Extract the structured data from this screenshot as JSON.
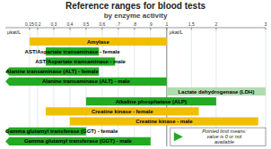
{
  "chart_data": {
    "type": "bar",
    "orientation": "horizontal",
    "title": "Reference ranges for blood tests",
    "subtitle": "by enzyme activity",
    "xlabel": "μkat/L",
    "categories": [
      "Amylase",
      "AST/Aspartate transaminase - female",
      "AST/Aspartate transaminase - male",
      "Alanine transaminase (ALT) - female",
      "Alanine transaminase (ALT) - male",
      "Lactate dehydrogenase (LDH)",
      "Alkaline phosphatase (ALP)",
      "Creatine kinase - female",
      "Creatine kinase - male",
      "Gamma glutamyl transferase (GGT) - female",
      "Gamma glutamyl transferase (GGT) - male"
    ],
    "values": [
      [
        0.15,
        1.0
      ],
      [
        0.25,
        0.58
      ],
      [
        0.25,
        0.68
      ],
      [
        0.0,
        0.58
      ],
      [
        0.0,
        1.0
      ],
      [
        1.0,
        3.0
      ],
      [
        0.5,
        2.0
      ],
      [
        0.25,
        1.65
      ],
      [
        0.4,
        2.85
      ],
      [
        0.0,
        0.5
      ],
      [
        0.0,
        0.9
      ]
    ],
    "colors": [
      "#f0c000",
      "#22aa22",
      "#22aa22",
      "#22aa22",
      "#22aa22",
      "#b0ddb0",
      "#22aa22",
      "#f0c000",
      "#f0c000",
      "#22aa22",
      "#22aa22"
    ],
    "xlim": [
      0,
      3
    ],
    "xbreak": 1,
    "xticks": [
      {
        "value": 0.15,
        "label": "0,15"
      },
      {
        "value": 0.2,
        "label": "0,2"
      },
      {
        "value": 0.3,
        "label": "0,3"
      },
      {
        "value": 0.4,
        "label": "0,4"
      },
      {
        "value": 0.5,
        "label": "0,5"
      },
      {
        "value": 0.6,
        "label": "0,6"
      },
      {
        "value": 0.7,
        "label": ".7"
      },
      {
        "value": 0.8,
        "label": ".8"
      },
      {
        "value": 0.9,
        "label": ".9"
      },
      1,
      {
        "value": 1.5,
        "label": "1,5"
      },
      2,
      3
    ],
    "grid": true,
    "annotation": {
      "text": "Pointed limit means:\nvalue is 0 or not\navailable",
      "color": "#22aa22"
    }
  }
}
